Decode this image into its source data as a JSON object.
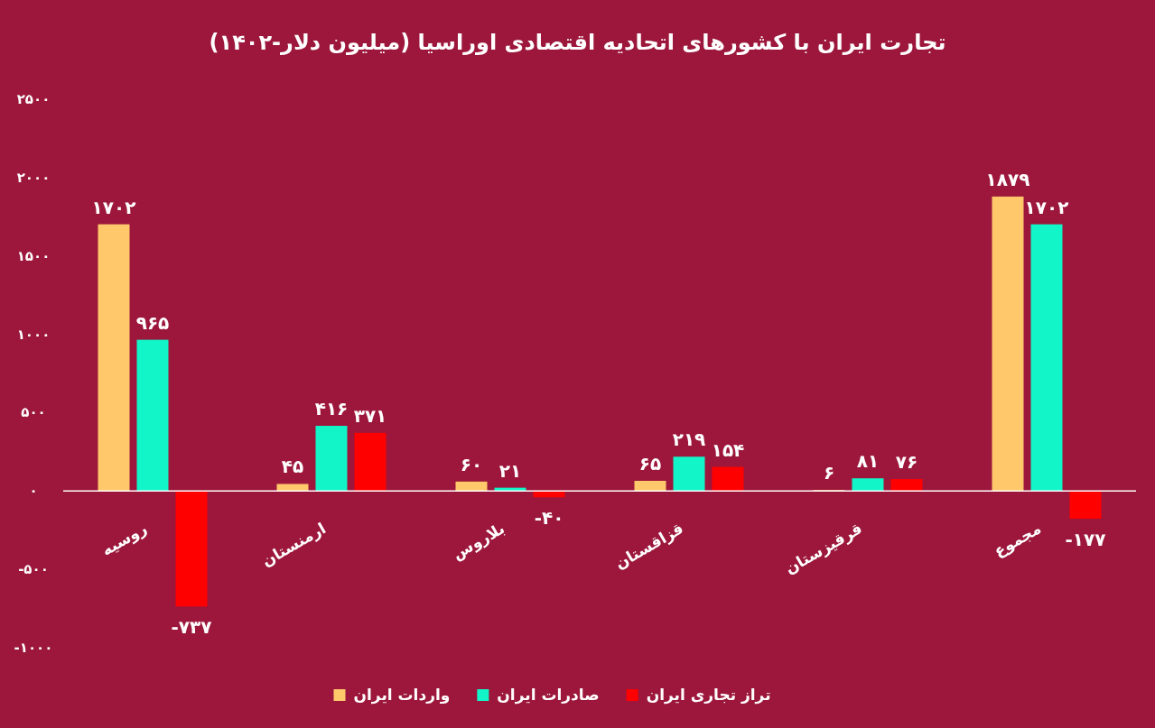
{
  "chart_data": {
    "type": "bar",
    "title": "تجارت ایران با کشورهای اتحادیه اقتصادی اوراسیا (میلیون دلار-۱۴۰۲)",
    "categories": [
      "روسیه",
      "ارمنستان",
      "بلاروس",
      "قزاقستان",
      "قرقیزستان",
      "مجموع"
    ],
    "series": [
      {
        "name": "واردات ایران",
        "color": "#ffc96b",
        "values": [
          1702,
          45,
          60,
          65,
          6,
          1879
        ],
        "value_labels": [
          "۱۷۰۲",
          "۴۵",
          "۶۰",
          "۶۵",
          "۶",
          "۱۸۷۹"
        ]
      },
      {
        "name": "صادرات ایران",
        "color": "#12f5c8",
        "values": [
          965,
          416,
          21,
          219,
          81,
          1702
        ],
        "value_labels": [
          "۹۶۵",
          "۴۱۶",
          "۲۱",
          "۲۱۹",
          "۸۱",
          "۱۷۰۲"
        ]
      },
      {
        "name": "تراز تجاری ایران",
        "color": "#ff0000",
        "values": [
          -737,
          371,
          -40,
          154,
          76,
          -177
        ],
        "value_labels": [
          "-۷۳۷",
          "۳۷۱",
          "-۴۰",
          "۱۵۴",
          "۷۶",
          "-۱۷۷"
        ]
      }
    ],
    "ylim": [
      -1000,
      2500
    ],
    "yticks": [
      {
        "value": 2500,
        "label": "۲۵۰۰"
      },
      {
        "value": 2000,
        "label": "۲۰۰۰"
      },
      {
        "value": 1500,
        "label": "۱۵۰۰"
      },
      {
        "value": 1000,
        "label": "۱۰۰۰"
      },
      {
        "value": 500,
        "label": "۵۰۰"
      },
      {
        "value": 0,
        "label": "۰"
      },
      {
        "value": -500,
        "label": "-۵۰۰"
      },
      {
        "value": -1000,
        "label": "-۱۰۰۰"
      }
    ],
    "grid": false,
    "legend": "bottom"
  }
}
